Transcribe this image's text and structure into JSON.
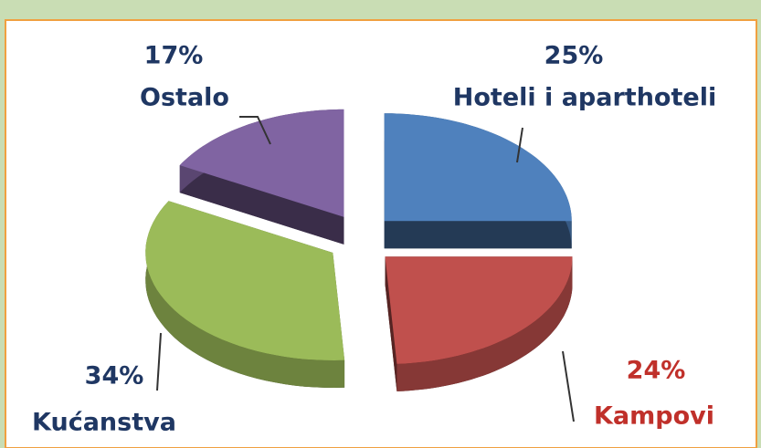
{
  "chart_data": {
    "type": "pie",
    "categories": [
      "Hoteli i aparthoteli",
      "Kampovi",
      "Kućanstva",
      "Ostalo"
    ],
    "values": [
      25,
      24,
      34,
      17
    ],
    "value_labels": [
      "25%",
      "24%",
      "34%",
      "17%"
    ],
    "colors": [
      "#4f81bd",
      "#c0504d",
      "#9bbb59",
      "#8064a2"
    ]
  }
}
